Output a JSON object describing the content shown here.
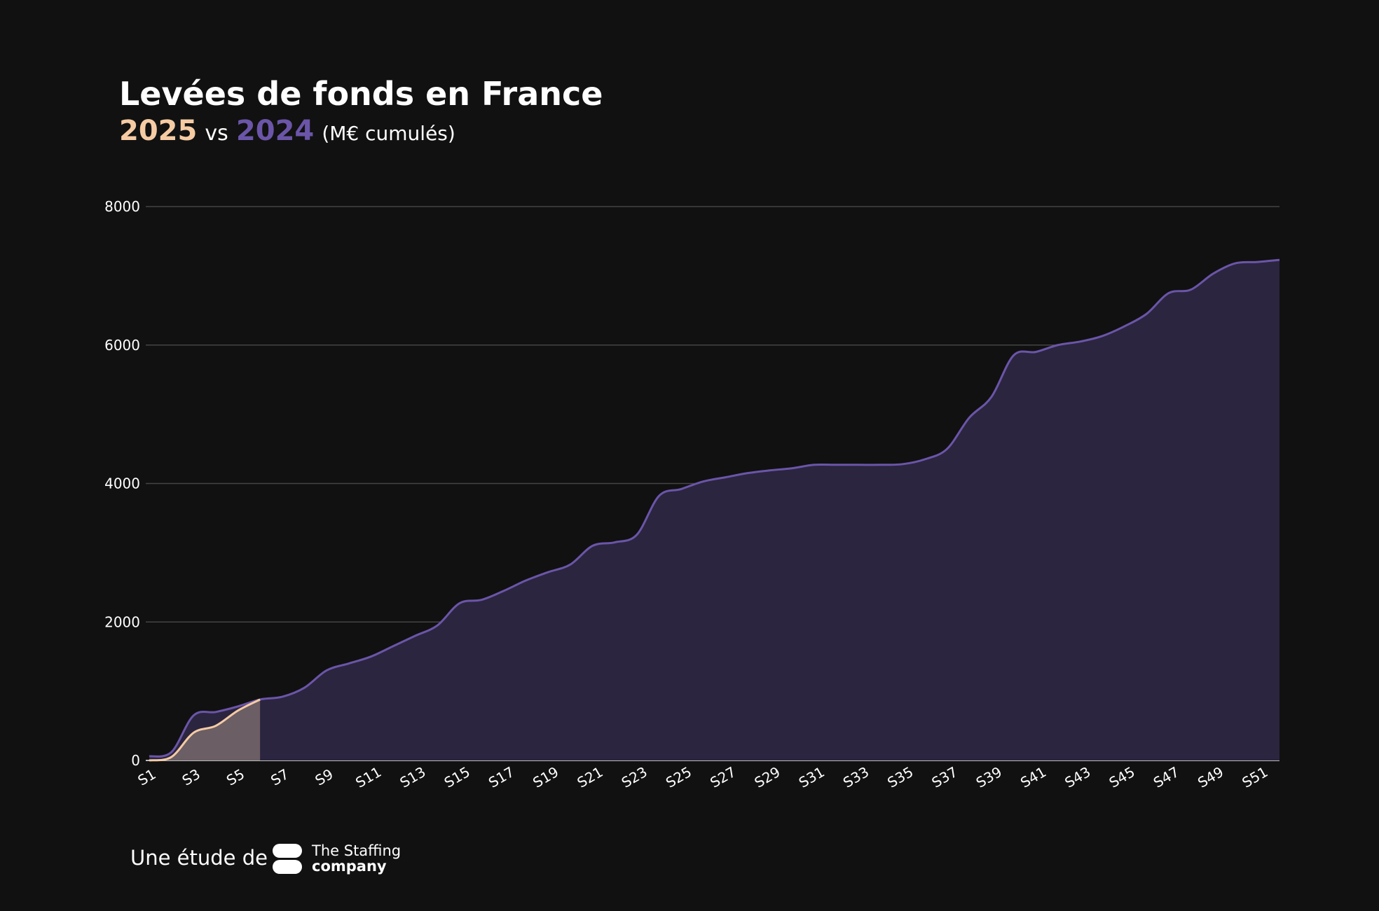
{
  "chart_data": {
    "type": "area",
    "title": "Levées de fonds en France",
    "subtitle": [
      "2025",
      "vs",
      "2024",
      "(M€ cumulés)"
    ],
    "categories": [
      "S1",
      null,
      "S3",
      null,
      "S5",
      null,
      "S7",
      null,
      "S9",
      null,
      "S11",
      null,
      "S13",
      null,
      "S15",
      null,
      "S17",
      null,
      "S19",
      null,
      "S21",
      null,
      "S23",
      null,
      "S25",
      null,
      "S27",
      null,
      "S29",
      null,
      "S31",
      null,
      "S33",
      null,
      "S35",
      null,
      "S37",
      null,
      "S39",
      null,
      "S41",
      null,
      "S43",
      null,
      "S45",
      null,
      "S47",
      null,
      "S49",
      null,
      "S51",
      null
    ],
    "series": [
      {
        "name": "2024",
        "color": "#6b55a8",
        "fill": "#2b2540",
        "values": [
          60,
          120,
          650,
          700,
          780,
          880,
          920,
          1050,
          1300,
          1400,
          1500,
          1650,
          1800,
          1950,
          2270,
          2320,
          2450,
          2600,
          2720,
          2830,
          3100,
          3150,
          3260,
          3820,
          3920,
          4030,
          4090,
          4150,
          4190,
          4220,
          4270,
          4270,
          4270,
          4270,
          4280,
          4350,
          4500,
          4950,
          5250,
          5850,
          5900,
          6000,
          6050,
          6130,
          6270,
          6450,
          6750,
          6800,
          7030,
          7180,
          7200,
          7230
        ]
      },
      {
        "name": "2025",
        "color": "#f5cba4",
        "fill": "#6b5e64",
        "values": [
          0,
          50,
          400,
          500,
          720,
          880,
          null,
          null,
          null,
          null,
          null,
          null,
          null,
          null,
          null,
          null,
          null,
          null,
          null,
          null,
          null,
          null,
          null,
          null,
          null,
          null,
          null,
          null,
          null,
          null,
          null,
          null,
          null,
          null,
          null,
          null,
          null,
          null,
          null,
          null,
          null,
          null,
          null,
          null,
          null,
          null,
          null,
          null,
          null,
          null,
          null,
          null
        ]
      }
    ],
    "ylim": [
      0,
      8000
    ],
    "yticks": [
      0,
      2000,
      4000,
      6000,
      8000
    ],
    "grid": true,
    "footer": {
      "text": "Une étude de",
      "logo": [
        "The Staffing",
        "company"
      ]
    }
  }
}
